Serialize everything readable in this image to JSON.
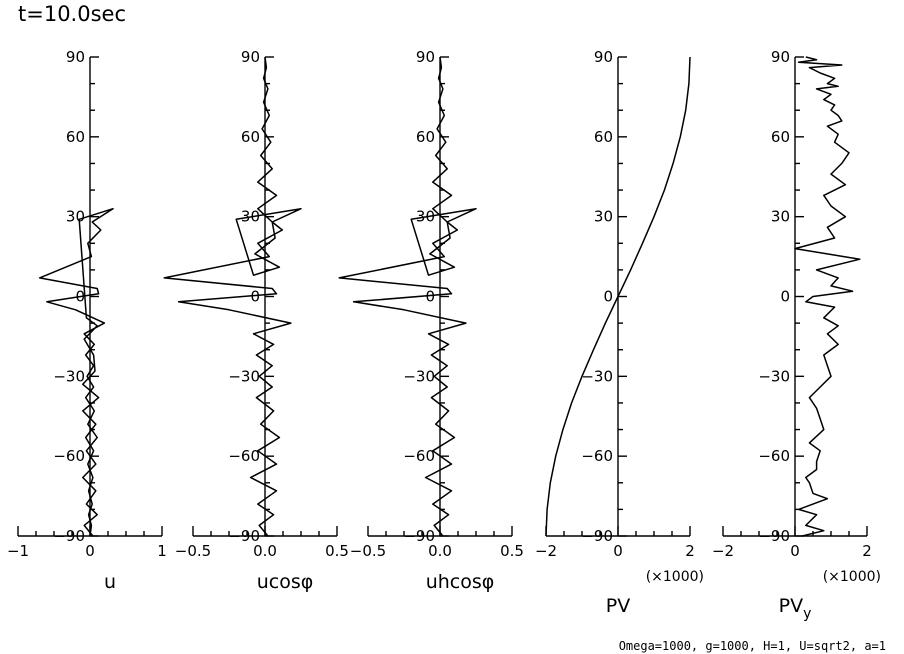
{
  "title": "t=10.0sec",
  "footer": "Omega=1000, g=1000, H=1, U=sqrt2, a=1",
  "chart_data": [
    {
      "type": "line",
      "xlabel": "u",
      "xlim": [
        -1,
        1
      ],
      "xticks": [
        "−1",
        "0",
        "1"
      ],
      "multiplier": "",
      "ylim": [
        -90,
        90
      ],
      "yticks": [
        "−90",
        "−60",
        "−30",
        "0",
        "30",
        "60",
        "90"
      ],
      "series": [
        {
          "x": [
            0,
            0.02,
            -0.02,
            0.03,
            -0.02,
            0.04,
            -0.03,
            0.05,
            -0.06,
            0.08,
            -0.1,
            0.12,
            -0.1,
            0.07,
            0.05,
            -0.08,
            0.1,
            -0.05,
            -0.15,
            0.32,
            0.03,
            0.15,
            -0.03,
            0.02,
            -0.7,
            0.1,
            0.12,
            -0.6,
            -0.2,
            0.2,
            -0.08,
            0.06,
            -0.06,
            0.05,
            -0.04,
            0.05,
            -0.06,
            0.06,
            -0.03,
            0.1,
            -0.05,
            0.08,
            -0.1,
            0.08,
            -0.05,
            0.1,
            -0.08,
            0.04
          ],
          "y": [
            -90,
            -86,
            -82,
            -78,
            -73,
            -68,
            -63,
            -58,
            -53,
            -48,
            -43,
            -38,
            -33,
            -28,
            -22,
            -16,
            -11,
            -8,
            29,
            33,
            28,
            25,
            20,
            15,
            7,
            3,
            1,
            -2,
            -5,
            -10,
            -14,
            -18,
            -22,
            -26,
            -30,
            -34,
            -38,
            -43,
            -48,
            -53,
            -58,
            -63,
            -68,
            -73,
            -78,
            -82,
            -86,
            -90
          ]
        }
      ]
    },
    {
      "type": "line",
      "xlabel": "ucosφ",
      "xlim": [
        -0.5,
        0.5
      ],
      "xticks": [
        "−0.5",
        "0.0",
        "0.5"
      ],
      "multiplier": "",
      "ylim": [
        -90,
        90
      ],
      "yticks": [
        "−90",
        "−60",
        "−30",
        "0",
        "30",
        "60",
        "90"
      ],
      "series": [
        {
          "x": [
            0,
            0.01,
            -0.01,
            0.02,
            -0.01,
            0.03,
            -0.02,
            0.04,
            -0.03,
            0.05,
            -0.05,
            0.08,
            -0.05,
            0.05,
            0.07,
            -0.07,
            0.1,
            -0.08,
            -0.2,
            0.25,
            0.05,
            0.12,
            -0.05,
            0.03,
            -0.7,
            0.05,
            0.08,
            -0.6,
            -0.25,
            0.18,
            -0.08,
            0.06,
            -0.06,
            0.05,
            -0.04,
            0.05,
            -0.06,
            0.06,
            -0.03,
            0.1,
            -0.05,
            0.08,
            -0.1,
            0.08,
            -0.05,
            0.06,
            -0.04,
            0.02
          ],
          "y": [
            90,
            86,
            82,
            78,
            73,
            68,
            63,
            58,
            53,
            48,
            43,
            38,
            33,
            28,
            22,
            16,
            11,
            8,
            29,
            33,
            28,
            25,
            20,
            15,
            7,
            3,
            1,
            -2,
            -5,
            -10,
            -14,
            -18,
            -22,
            -26,
            -30,
            -34,
            -38,
            -43,
            -48,
            -53,
            -58,
            -63,
            -68,
            -73,
            -78,
            -82,
            -86,
            -90
          ]
        }
      ]
    },
    {
      "type": "line",
      "xlabel": "uhcosφ",
      "xlim": [
        -0.5,
        0.5
      ],
      "xticks": [
        "−0.5",
        "0.0",
        "0.5"
      ],
      "multiplier": "",
      "ylim": [
        -90,
        90
      ],
      "yticks": [
        "−90",
        "−60",
        "−30",
        "0",
        "30",
        "60",
        "90"
      ],
      "series": [
        {
          "x": [
            0,
            0.01,
            -0.01,
            0.02,
            -0.01,
            0.03,
            -0.02,
            0.04,
            -0.03,
            0.05,
            -0.05,
            0.08,
            -0.05,
            0.05,
            0.07,
            -0.07,
            0.1,
            -0.08,
            -0.2,
            0.25,
            0.05,
            0.12,
            -0.05,
            0.03,
            -0.7,
            0.05,
            0.08,
            -0.6,
            -0.25,
            0.18,
            -0.08,
            0.06,
            -0.06,
            0.05,
            -0.04,
            0.05,
            -0.06,
            0.06,
            -0.03,
            0.1,
            -0.05,
            0.08,
            -0.1,
            0.08,
            -0.05,
            0.06,
            -0.04,
            0.02
          ],
          "y": [
            90,
            86,
            82,
            78,
            73,
            68,
            63,
            58,
            53,
            48,
            43,
            38,
            33,
            28,
            22,
            16,
            11,
            8,
            29,
            33,
            28,
            25,
            20,
            15,
            7,
            3,
            1,
            -2,
            -5,
            -10,
            -14,
            -18,
            -22,
            -26,
            -30,
            -34,
            -38,
            -43,
            -48,
            -53,
            -58,
            -63,
            -68,
            -73,
            -78,
            -82,
            -86,
            -90
          ]
        }
      ]
    },
    {
      "type": "line",
      "xlabel": "PV",
      "xlim": [
        -2,
        2
      ],
      "xticks": [
        "−2",
        "0",
        "2"
      ],
      "multiplier": "(×1000)",
      "ylim": [
        -90,
        90
      ],
      "yticks": [
        "−90",
        "−60",
        "−30",
        "0",
        "30",
        "60",
        "90"
      ],
      "series": [
        {
          "x": [
            -2.0,
            -1.97,
            -1.88,
            -1.73,
            -1.53,
            -1.29,
            -1.0,
            -0.68,
            -0.35,
            0,
            0.35,
            0.68,
            1.0,
            1.29,
            1.53,
            1.73,
            1.88,
            1.97,
            2.0
          ],
          "y": [
            -90,
            -80,
            -70,
            -60,
            -50,
            -40,
            -30,
            -20,
            -10,
            0,
            10,
            20,
            30,
            40,
            50,
            60,
            70,
            80,
            90
          ]
        }
      ]
    },
    {
      "type": "line",
      "xlabel": "PV",
      "xlabel_sub": "y",
      "xlim": [
        -2,
        2
      ],
      "xticks": [
        "−2",
        "0",
        "2"
      ],
      "multiplier": "(×1000)",
      "ylim": [
        -90,
        90
      ],
      "yticks": [
        "−90",
        "−60",
        "−30",
        "0",
        "30",
        "60",
        "90"
      ],
      "series": [
        {
          "x": [
            0.2,
            0.8,
            0.3,
            0.6,
            0.1,
            0.9,
            0.5,
            0.4,
            0.3,
            0.6,
            0.6,
            0.7,
            0.4,
            0.8,
            0.7,
            0.6,
            0.4,
            0.7,
            1.0,
            0.9,
            0.8,
            1.2,
            0.9,
            1.2,
            0.8,
            1.1,
            0.3,
            0.5,
            1.6,
            1.0,
            1.2,
            0.6,
            1.8,
            0.0,
            1.1,
            0.9,
            1.4,
            1.0,
            0.8,
            1.4,
            1.0,
            1.3,
            1.5,
            1.1,
            1.2,
            0.9,
            1.3,
            1.2,
            1.0,
            1.1,
            0.8,
            1.0,
            0.6,
            1.2,
            0.9,
            1.1,
            0.7,
            0.4,
            1.3,
            0.1,
            0.6,
            0.3
          ],
          "y": [
            -90,
            -88,
            -86,
            -82,
            -80,
            -76,
            -74,
            -70,
            -68,
            -65,
            -62,
            -58,
            -55,
            -50,
            -46,
            -42,
            -38,
            -34,
            -30,
            -26,
            -22,
            -18,
            -14,
            -11,
            -8,
            -4,
            -2,
            0,
            2,
            4,
            7,
            10,
            14,
            18,
            22,
            26,
            30,
            34,
            38,
            42,
            46,
            50,
            54,
            58,
            61,
            64,
            66,
            68,
            70,
            72,
            74,
            76,
            78,
            79,
            80,
            82,
            84,
            86,
            87,
            88,
            89,
            90
          ]
        }
      ]
    }
  ]
}
